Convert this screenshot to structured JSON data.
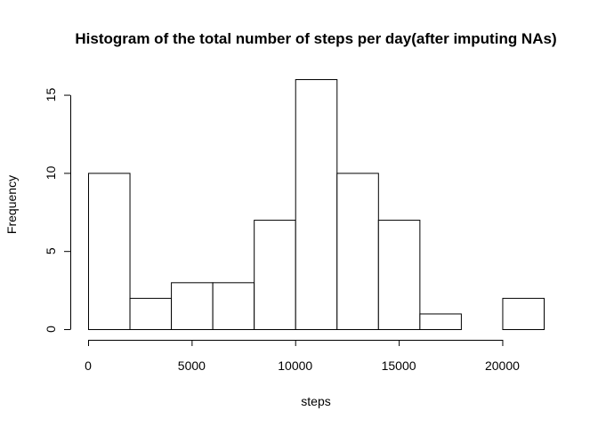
{
  "chart_data": {
    "type": "bar",
    "title": "Histogram of the total number of steps per day(after imputing NAs)",
    "xlabel": "steps",
    "ylabel": "Frequency",
    "bin_edges": [
      0,
      2000,
      4000,
      6000,
      8000,
      10000,
      12000,
      14000,
      16000,
      18000,
      20000,
      22000
    ],
    "values": [
      10,
      2,
      3,
      3,
      7,
      16,
      10,
      7,
      1,
      0,
      2
    ],
    "x_ticks": [
      0,
      5000,
      10000,
      15000,
      20000
    ],
    "x_tick_labels": [
      "0",
      "5000",
      "10000",
      "15000",
      "20000"
    ],
    "y_ticks": [
      0,
      5,
      10,
      15
    ],
    "y_tick_labels": [
      "0",
      "5",
      "10",
      "15"
    ],
    "xlim": [
      0,
      22000
    ],
    "ylim": [
      0,
      16
    ],
    "grid": false,
    "colors": {
      "bar_fill": "#ffffff",
      "bar_stroke": "#000000"
    }
  }
}
